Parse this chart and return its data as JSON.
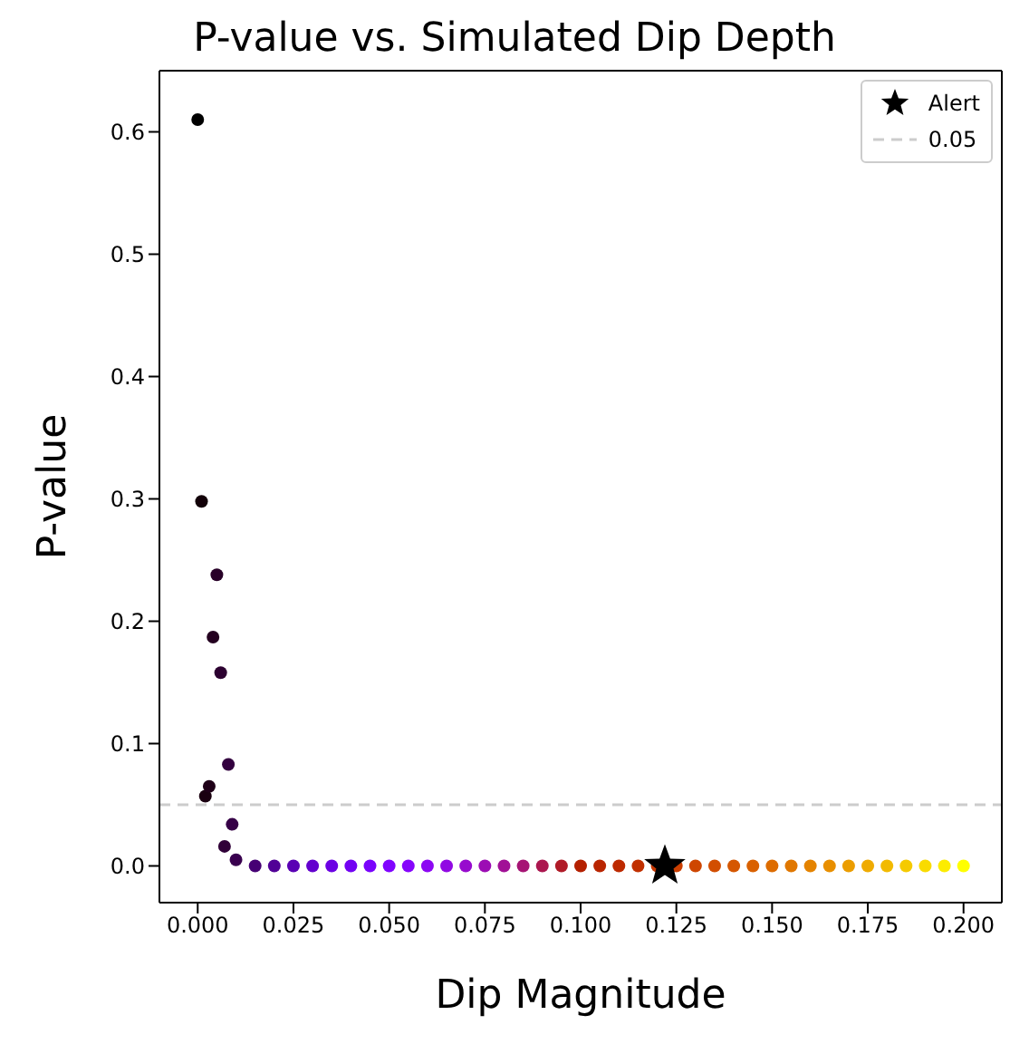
{
  "chart_data": {
    "type": "scatter",
    "title": "P-value vs. Simulated Dip Depth",
    "xlabel": "Dip Magnitude",
    "ylabel": "P-value",
    "xlim": [
      -0.01,
      0.21
    ],
    "ylim": [
      -0.03,
      0.65
    ],
    "xticks": [
      {
        "value": 0,
        "label": "0.000"
      },
      {
        "value": 0.025,
        "label": "0.025"
      },
      {
        "value": 0.05,
        "label": "0.050"
      },
      {
        "value": 0.075,
        "label": "0.075"
      },
      {
        "value": 0.1,
        "label": "0.100"
      },
      {
        "value": 0.125,
        "label": "0.125"
      },
      {
        "value": 0.15,
        "label": "0.150"
      },
      {
        "value": 0.175,
        "label": "0.175"
      },
      {
        "value": 0.2,
        "label": "0.200"
      }
    ],
    "yticks": [
      {
        "value": 0,
        "label": "0.0"
      },
      0.1,
      0.2,
      0.3,
      0.4,
      0.5,
      0.6
    ],
    "legend": "top right",
    "ref_lines": [
      {
        "axis": "y",
        "value": 0.05,
        "label": "0.05",
        "color": "#cccccc",
        "line_style": "dashed"
      }
    ],
    "series": [
      {
        "marker": "circle",
        "x": [
          0,
          0.001,
          0.002,
          0.003,
          0.004,
          0.005,
          0.006,
          0.007,
          0.008,
          0.009,
          0.01,
          0.015,
          0.02,
          0.025,
          0.03,
          0.035,
          0.04,
          0.045,
          0.05,
          0.055,
          0.06,
          0.065,
          0.07,
          0.075,
          0.08,
          0.085,
          0.09,
          0.095,
          0.1,
          0.105,
          0.11,
          0.115,
          0.12,
          0.125,
          0.13,
          0.135,
          0.14,
          0.145,
          0.15,
          0.155,
          0.16,
          0.165,
          0.17,
          0.175,
          0.18,
          0.185,
          0.19,
          0.195,
          0.2
        ],
        "values": [
          0.61,
          0.298,
          0.057,
          0.065,
          0.187,
          0.238,
          0.158,
          0.016,
          0.083,
          0.034,
          0.005,
          0,
          0,
          0,
          0,
          0,
          0,
          0,
          0,
          0,
          0,
          0,
          0,
          0,
          0,
          0,
          0,
          0,
          0,
          0,
          0,
          0,
          0,
          0,
          0,
          0,
          0,
          0,
          0,
          0,
          0,
          0,
          0,
          0,
          0,
          0,
          0,
          0,
          0
        ],
        "colors": [
          "#000000",
          "#120008",
          "#1a0010",
          "#1f0018",
          "#240020",
          "#280028",
          "#2c0030",
          "#300038",
          "#33003f",
          "#360047",
          "#39004f",
          "#460074",
          "#510096",
          "#5a00b4",
          "#6301ce",
          "#6b01e3",
          "#7202f3",
          "#7903fc",
          "#8004ff",
          "#8605fc",
          "#8c07f3",
          "#9109e3",
          "#970bce",
          "#9c0db4",
          "#a11096",
          "#a61474",
          "#ab174f",
          "#b01b28",
          "#b42000",
          "#b92500",
          "#bd2a00",
          "#c13000",
          "#c63700",
          "#ca3e00",
          "#ce4600",
          "#d24e00",
          "#d55700",
          "#d96100",
          "#dd6c00",
          "#e07700",
          "#e48300",
          "#e88f00",
          "#eb9d00",
          "#efab00",
          "#f2ba00",
          "#f5ca00",
          "#f9db00",
          "#fcec00",
          "#ffff00"
        ]
      },
      {
        "marker": "star",
        "name": "Alert",
        "color": "#000000",
        "x": [
          0.122
        ],
        "values": [
          0
        ]
      }
    ]
  }
}
